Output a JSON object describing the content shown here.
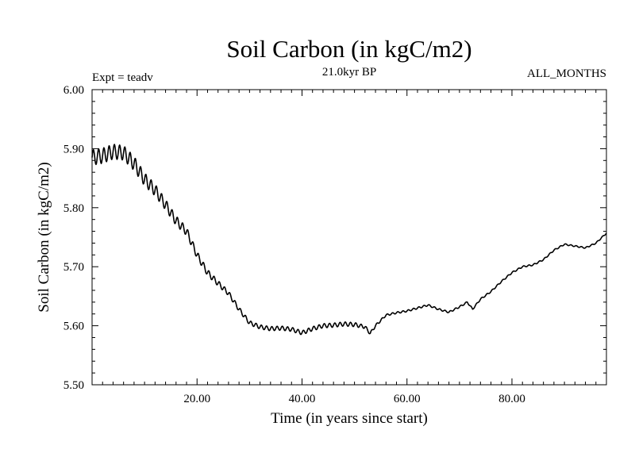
{
  "chart_data": {
    "type": "line",
    "title": "Soil Carbon (in kgC/m2)",
    "subtitle": "21.0kyr BP",
    "expt_label": "Expt = teadv",
    "period_label": "ALL_MONTHS",
    "xlabel": "Time (in years since start)",
    "ylabel": "Soil Carbon (in kgC/m2)",
    "xlim": [
      0,
      98
    ],
    "ylim": [
      5.5,
      6.0
    ],
    "x_ticks": [
      20,
      40,
      60,
      80
    ],
    "x_tick_labels": [
      "20.00",
      "40.00",
      "60.00",
      "80.00"
    ],
    "y_ticks": [
      5.5,
      5.6,
      5.7,
      5.8,
      5.9,
      6.0
    ],
    "y_tick_labels": [
      "5.50",
      "5.60",
      "5.70",
      "5.80",
      "5.90",
      "6.00"
    ],
    "grid": false,
    "series": [
      {
        "name": "Soil Carbon",
        "color": "#000000",
        "trend_x": [
          0,
          2,
          4,
          6,
          8,
          10,
          12,
          14,
          16,
          18,
          20,
          22,
          24,
          26,
          28,
          30,
          32,
          34,
          36,
          38,
          40,
          42,
          44,
          46,
          48,
          50,
          52,
          53,
          54,
          56,
          58,
          60,
          62,
          64,
          66,
          68,
          70,
          71.5,
          72.5,
          74,
          76,
          78,
          80,
          82,
          84,
          86,
          88,
          90,
          92,
          94,
          96,
          98
        ],
        "trend_y": [
          5.885,
          5.888,
          5.895,
          5.893,
          5.875,
          5.848,
          5.83,
          5.805,
          5.778,
          5.76,
          5.72,
          5.69,
          5.672,
          5.655,
          5.628,
          5.605,
          5.598,
          5.595,
          5.596,
          5.594,
          5.588,
          5.595,
          5.6,
          5.601,
          5.603,
          5.602,
          5.598,
          5.587,
          5.6,
          5.618,
          5.622,
          5.625,
          5.63,
          5.635,
          5.628,
          5.623,
          5.632,
          5.64,
          5.628,
          5.645,
          5.658,
          5.675,
          5.69,
          5.7,
          5.703,
          5.712,
          5.728,
          5.738,
          5.735,
          5.732,
          5.74,
          5.757
        ],
        "osc_amplitude_x": [
          0,
          8,
          14,
          20,
          26,
          30,
          50,
          56,
          98
        ],
        "osc_amplitude_y": [
          0.013,
          0.012,
          0.009,
          0.006,
          0.004,
          0.0035,
          0.0035,
          0.0015,
          0.001
        ]
      }
    ]
  }
}
